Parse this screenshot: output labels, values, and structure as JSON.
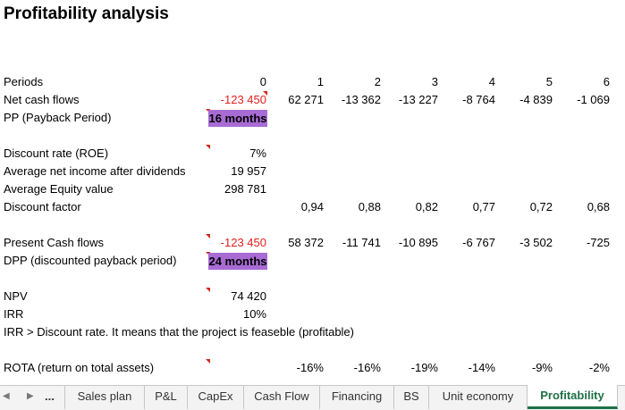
{
  "title": "Profitability analysis",
  "periods": {
    "label": "Periods",
    "values": [
      "0",
      "1",
      "2",
      "3",
      "4",
      "5",
      "6"
    ]
  },
  "net_cash_flows": {
    "label": "Net cash flows",
    "values": [
      "-123 450",
      "62 271",
      "-13 362",
      "-13 227",
      "-8 764",
      "-4 839",
      "-1 069"
    ]
  },
  "pp": {
    "label": "PP (Payback Period)",
    "value": "16 months"
  },
  "discount_rate": {
    "label": "Discount rate (ROE)",
    "value": "7%"
  },
  "avg_net_income": {
    "label": "Average net income after dividends",
    "value": "19 957"
  },
  "avg_equity": {
    "label": "Average Equity value",
    "value": "298 781"
  },
  "discount_factor": {
    "label": "Discount factor",
    "values": [
      "0,94",
      "0,88",
      "0,82",
      "0,77",
      "0,72",
      "0,68"
    ]
  },
  "present_cash_flows": {
    "label": "Present Cash flows",
    "values": [
      "-123 450",
      "58 372",
      "-11 741",
      "-10 895",
      "-6 767",
      "-3 502",
      "-725"
    ]
  },
  "dpp": {
    "label": "DPP (discounted payback period)",
    "value": "24 months"
  },
  "npv": {
    "label": "NPV",
    "value": "74 420"
  },
  "irr": {
    "label": "IRR",
    "value": "10%"
  },
  "irr_note": "IRR > Discount rate. It means that the project is feaseble (profitable)",
  "rota": {
    "label": "ROTA (return on total assets)",
    "values": [
      "-16%",
      "-16%",
      "-19%",
      "-14%",
      "-9%",
      "-2%"
    ]
  },
  "colors": {
    "highlight": "#a86bd4",
    "negative": "#e0201b",
    "active_tab": "#1e7145"
  },
  "tabs": {
    "more": "...",
    "items": [
      "Sales plan",
      "P&L",
      "CapEx",
      "Cash Flow",
      "Financing",
      "BS",
      "Unit economy",
      "Profitability"
    ],
    "active": "Profitability"
  }
}
